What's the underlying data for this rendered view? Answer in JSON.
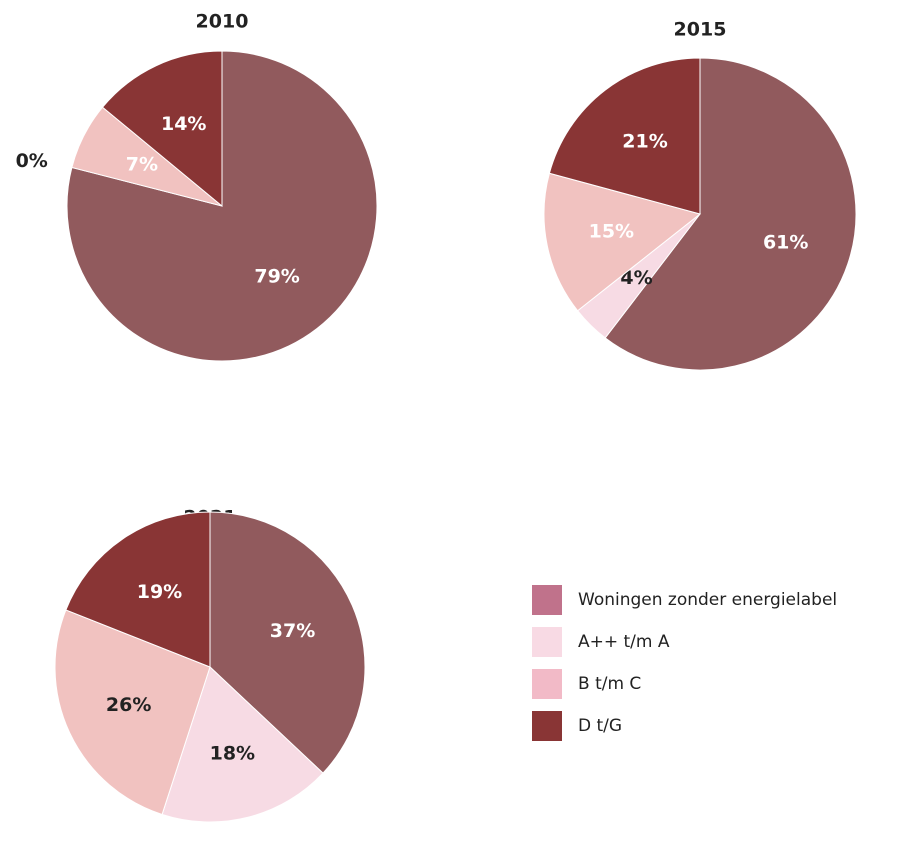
{
  "chart_data": [
    {
      "type": "pie",
      "title": "2010",
      "categories": [
        "Woningen zonder energielabel",
        "A++ t/m A",
        "B t/m C",
        "D t/G"
      ],
      "values": [
        79,
        0,
        7,
        14
      ],
      "value_labels": [
        "79%",
        "0%",
        "7%",
        "14%"
      ],
      "colors": [
        "#915a5d",
        "#f7dbe4",
        "#f1c2c0",
        "#893535"
      ]
    },
    {
      "type": "pie",
      "title": "2015",
      "categories": [
        "Woningen zonder energielabel",
        "A++ t/m A",
        "B t/m C",
        "D t/G"
      ],
      "values": [
        61,
        4,
        15,
        21
      ],
      "value_labels": [
        "61%",
        "4%",
        "15%",
        "21%"
      ],
      "colors": [
        "#915a5d",
        "#f7dbe4",
        "#f1c2c0",
        "#893535"
      ]
    },
    {
      "type": "pie",
      "title": "2021",
      "categories": [
        "Woningen zonder energielabel",
        "A++ t/m A",
        "B t/m C",
        "D t/G"
      ],
      "values": [
        37,
        18,
        26,
        19
      ],
      "value_labels": [
        "37%",
        "18%",
        "26%",
        "19%"
      ],
      "colors": [
        "#915a5d",
        "#f7dbe4",
        "#f1c2c0",
        "#893535"
      ]
    }
  ],
  "legend": {
    "position": "lower right",
    "colors": [
      "#c0728b",
      "#f8dae4",
      "#f2bac7",
      "#893535"
    ]
  }
}
